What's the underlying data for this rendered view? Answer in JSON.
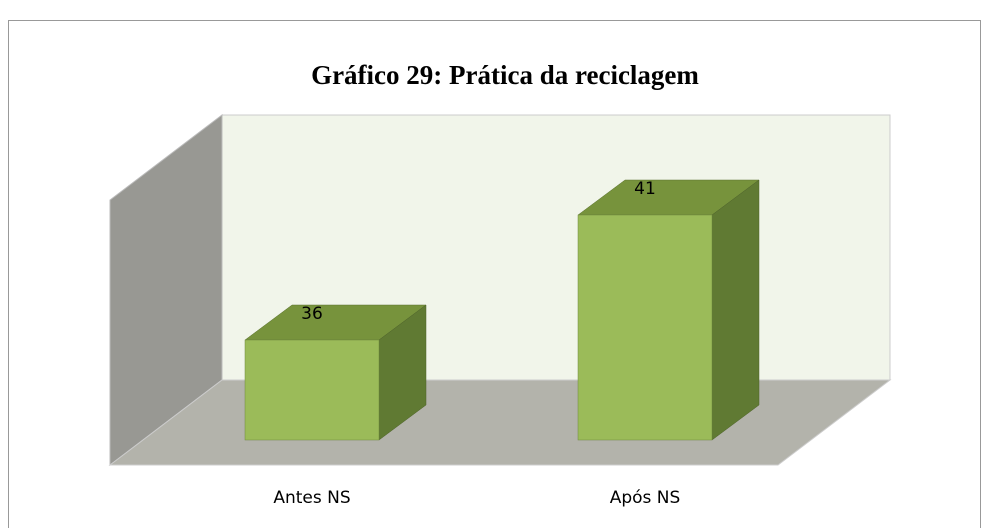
{
  "chart_data": {
    "type": "bar3d",
    "title": "Gráfico 29: Prática da reciclagem",
    "categories": [
      "Antes NS",
      "Após NS"
    ],
    "values": [
      36,
      41
    ],
    "color": "#9bbb59",
    "ylim": [
      32,
      45
    ]
  }
}
